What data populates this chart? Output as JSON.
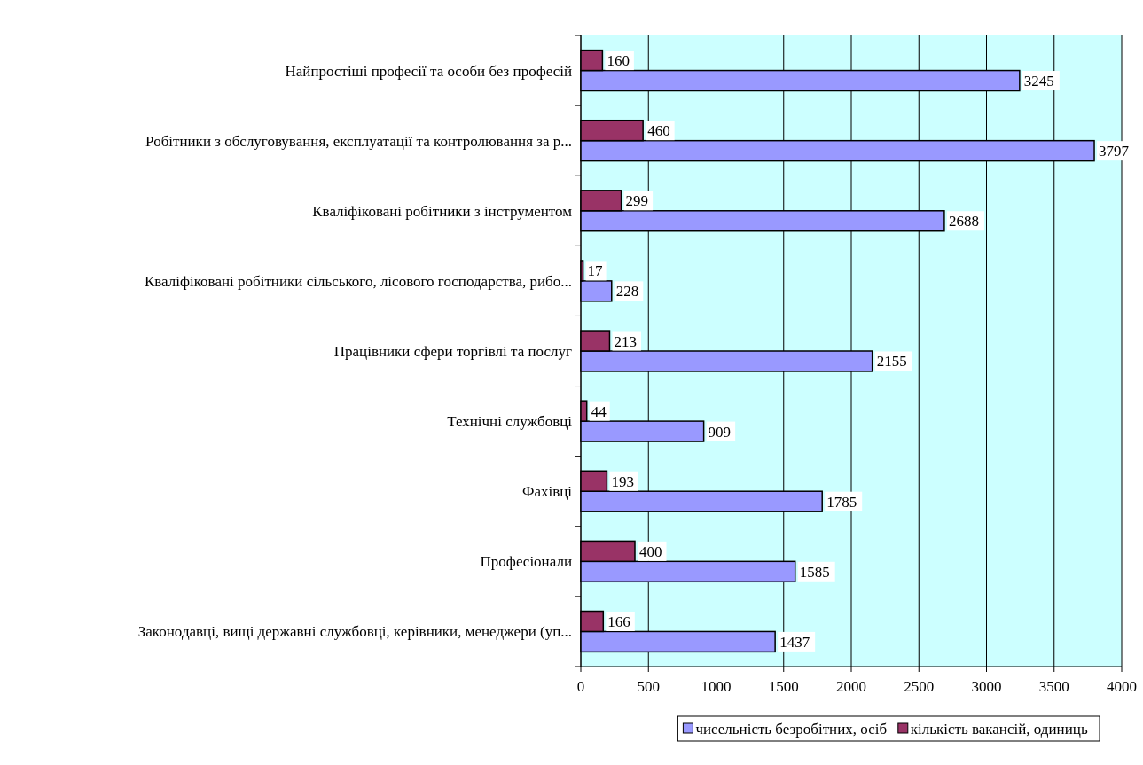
{
  "chart_data": {
    "type": "bar",
    "orientation": "horizontal",
    "categories": [
      "Найпростіші професії та особи без професій",
      "Робітники з обслуговування, експлуатації та контролювання за р...",
      "Кваліфіковані робітники з інструментом",
      "Кваліфіковані робітники сільського, лісового господарства, рибо...",
      "Працівники сфери торгівлі та послуг",
      "Технічні службовці",
      "Фахівці",
      "Професіонали",
      "Законодавці, вищі державні службовці, керівники, менеджери (уп..."
    ],
    "series": [
      {
        "name": "чисельність безробітних, осіб",
        "color": "#9999ff",
        "values": [
          3245,
          3797,
          2688,
          228,
          2155,
          909,
          1785,
          1585,
          1437
        ]
      },
      {
        "name": "кількість вакансій, одиниць",
        "color": "#993366",
        "values": [
          160,
          460,
          299,
          17,
          213,
          44,
          193,
          400,
          166
        ]
      }
    ],
    "xlim": [
      0,
      4000
    ],
    "xticks": [
      0,
      500,
      1000,
      1500,
      2000,
      2500,
      3000,
      3500,
      4000
    ],
    "grid": "x",
    "legend": "bottom",
    "data_labels": true
  }
}
